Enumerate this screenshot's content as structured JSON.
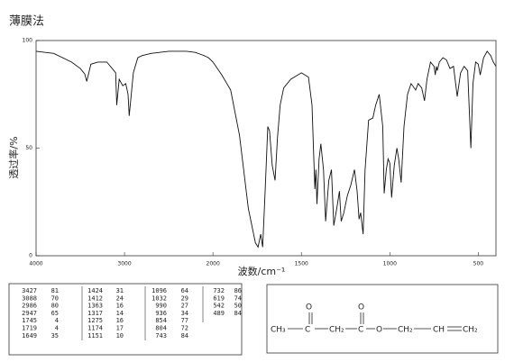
{
  "chart_data": {
    "type": "line",
    "title": "薄膜法",
    "ylabel": "透过率/%",
    "xlabel": "波数/cm⁻¹",
    "color": "#111111",
    "xlim": [
      4000,
      400
    ],
    "x_scale_change": 2000,
    "xticks": [
      4000,
      3000,
      2000,
      1500,
      1000,
      500
    ],
    "ylim": [
      0,
      100
    ],
    "yticks": [
      0,
      50,
      100
    ],
    "x": [
      4000,
      3800,
      3600,
      3500,
      3450,
      3427,
      3380,
      3300,
      3200,
      3100,
      3088,
      3060,
      3020,
      2986,
      2960,
      2947,
      2900,
      2850,
      2800,
      2700,
      2500,
      2300,
      2200,
      2100,
      2050,
      2000,
      1950,
      1900,
      1850,
      1800,
      1760,
      1745,
      1730,
      1719,
      1705,
      1690,
      1680,
      1665,
      1649,
      1635,
      1620,
      1600,
      1560,
      1500,
      1460,
      1440,
      1424,
      1418,
      1412,
      1400,
      1390,
      1375,
      1363,
      1345,
      1330,
      1317,
      1300,
      1285,
      1275,
      1260,
      1240,
      1220,
      1200,
      1185,
      1174,
      1165,
      1151,
      1140,
      1120,
      1096,
      1080,
      1060,
      1040,
      1032,
      1020,
      1010,
      1000,
      990,
      975,
      960,
      950,
      936,
      920,
      900,
      880,
      854,
      840,
      820,
      804,
      790,
      770,
      750,
      743,
      737,
      732,
      720,
      700,
      680,
      660,
      640,
      619,
      600,
      580,
      560,
      542,
      530,
      515,
      500,
      489,
      470,
      450,
      430,
      415,
      400
    ],
    "values": [
      95,
      94,
      90,
      87,
      84.5,
      81,
      89,
      90,
      90,
      85,
      70,
      82,
      79,
      80,
      75,
      65,
      85,
      92,
      93,
      94,
      95,
      95,
      94.5,
      93,
      92,
      90,
      84,
      77,
      56,
      22,
      6,
      4,
      10,
      4,
      30,
      60,
      58,
      42,
      35,
      55,
      70,
      78,
      82,
      85,
      83,
      70,
      31,
      40,
      24,
      45,
      52,
      40,
      16,
      35,
      40,
      14,
      22,
      30,
      16,
      20,
      28,
      33,
      40,
      30,
      17,
      20,
      10,
      40,
      63,
      64,
      70,
      75,
      60,
      29,
      40,
      45,
      43,
      27,
      42,
      50,
      45,
      34,
      60,
      75,
      80,
      77,
      80,
      78,
      72,
      82,
      90,
      88,
      84,
      88,
      86,
      90,
      92,
      91,
      87,
      88,
      74,
      85,
      88,
      86,
      50,
      80,
      90,
      89,
      84,
      92,
      95,
      93,
      90,
      88
    ]
  },
  "peak_table": {
    "columns": [
      [
        [
          3427,
          81
        ],
        [
          3088,
          70
        ],
        [
          2986,
          80
        ],
        [
          2947,
          65
        ],
        [
          1745,
          4
        ],
        [
          1719,
          4
        ],
        [
          1649,
          35
        ]
      ],
      [
        [
          1424,
          31
        ],
        [
          1412,
          24
        ],
        [
          1363,
          16
        ],
        [
          1317,
          14
        ],
        [
          1275,
          16
        ],
        [
          1174,
          17
        ],
        [
          1151,
          10
        ]
      ],
      [
        [
          1096,
          64
        ],
        [
          1032,
          29
        ],
        [
          990,
          27
        ],
        [
          936,
          34
        ],
        [
          854,
          77
        ],
        [
          804,
          72
        ],
        [
          743,
          84
        ]
      ],
      [
        [
          732,
          86
        ],
        [
          619,
          74
        ],
        [
          542,
          50
        ],
        [
          489,
          84
        ]
      ]
    ]
  },
  "structure": {
    "atoms": [
      "CH₃",
      "C",
      "O",
      "CH₂",
      "C",
      "O",
      "O",
      "CH₂",
      "CH",
      "CH₂"
    ]
  }
}
